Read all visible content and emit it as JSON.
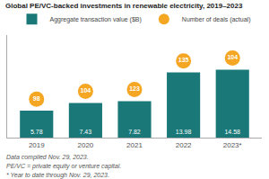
{
  "chart_data": {
    "type": "bar",
    "title": "Global PE/VC-backed investments in renewable electricity, 2019–2023",
    "categories": [
      "2019",
      "2020",
      "2021",
      "2022",
      "2023*"
    ],
    "series": [
      {
        "name": "Aggregate transaction value ($B)",
        "color": "#1a7878",
        "values": [
          5.78,
          7.43,
          7.82,
          13.98,
          14.58
        ]
      }
    ],
    "deals": {
      "name": "Number of deals (actual)",
      "color": "#f5a623",
      "values": [
        98,
        104,
        123,
        135,
        104
      ]
    },
    "ylim": [
      0,
      22
    ],
    "data_labels": true,
    "tick_labels": "x",
    "legend": "top",
    "annotations": [
      "Data compiled Nov. 29, 2023.",
      "PE/VC = private equity or venture capital.",
      "* Year to date through Nov. 29, 2023."
    ]
  }
}
